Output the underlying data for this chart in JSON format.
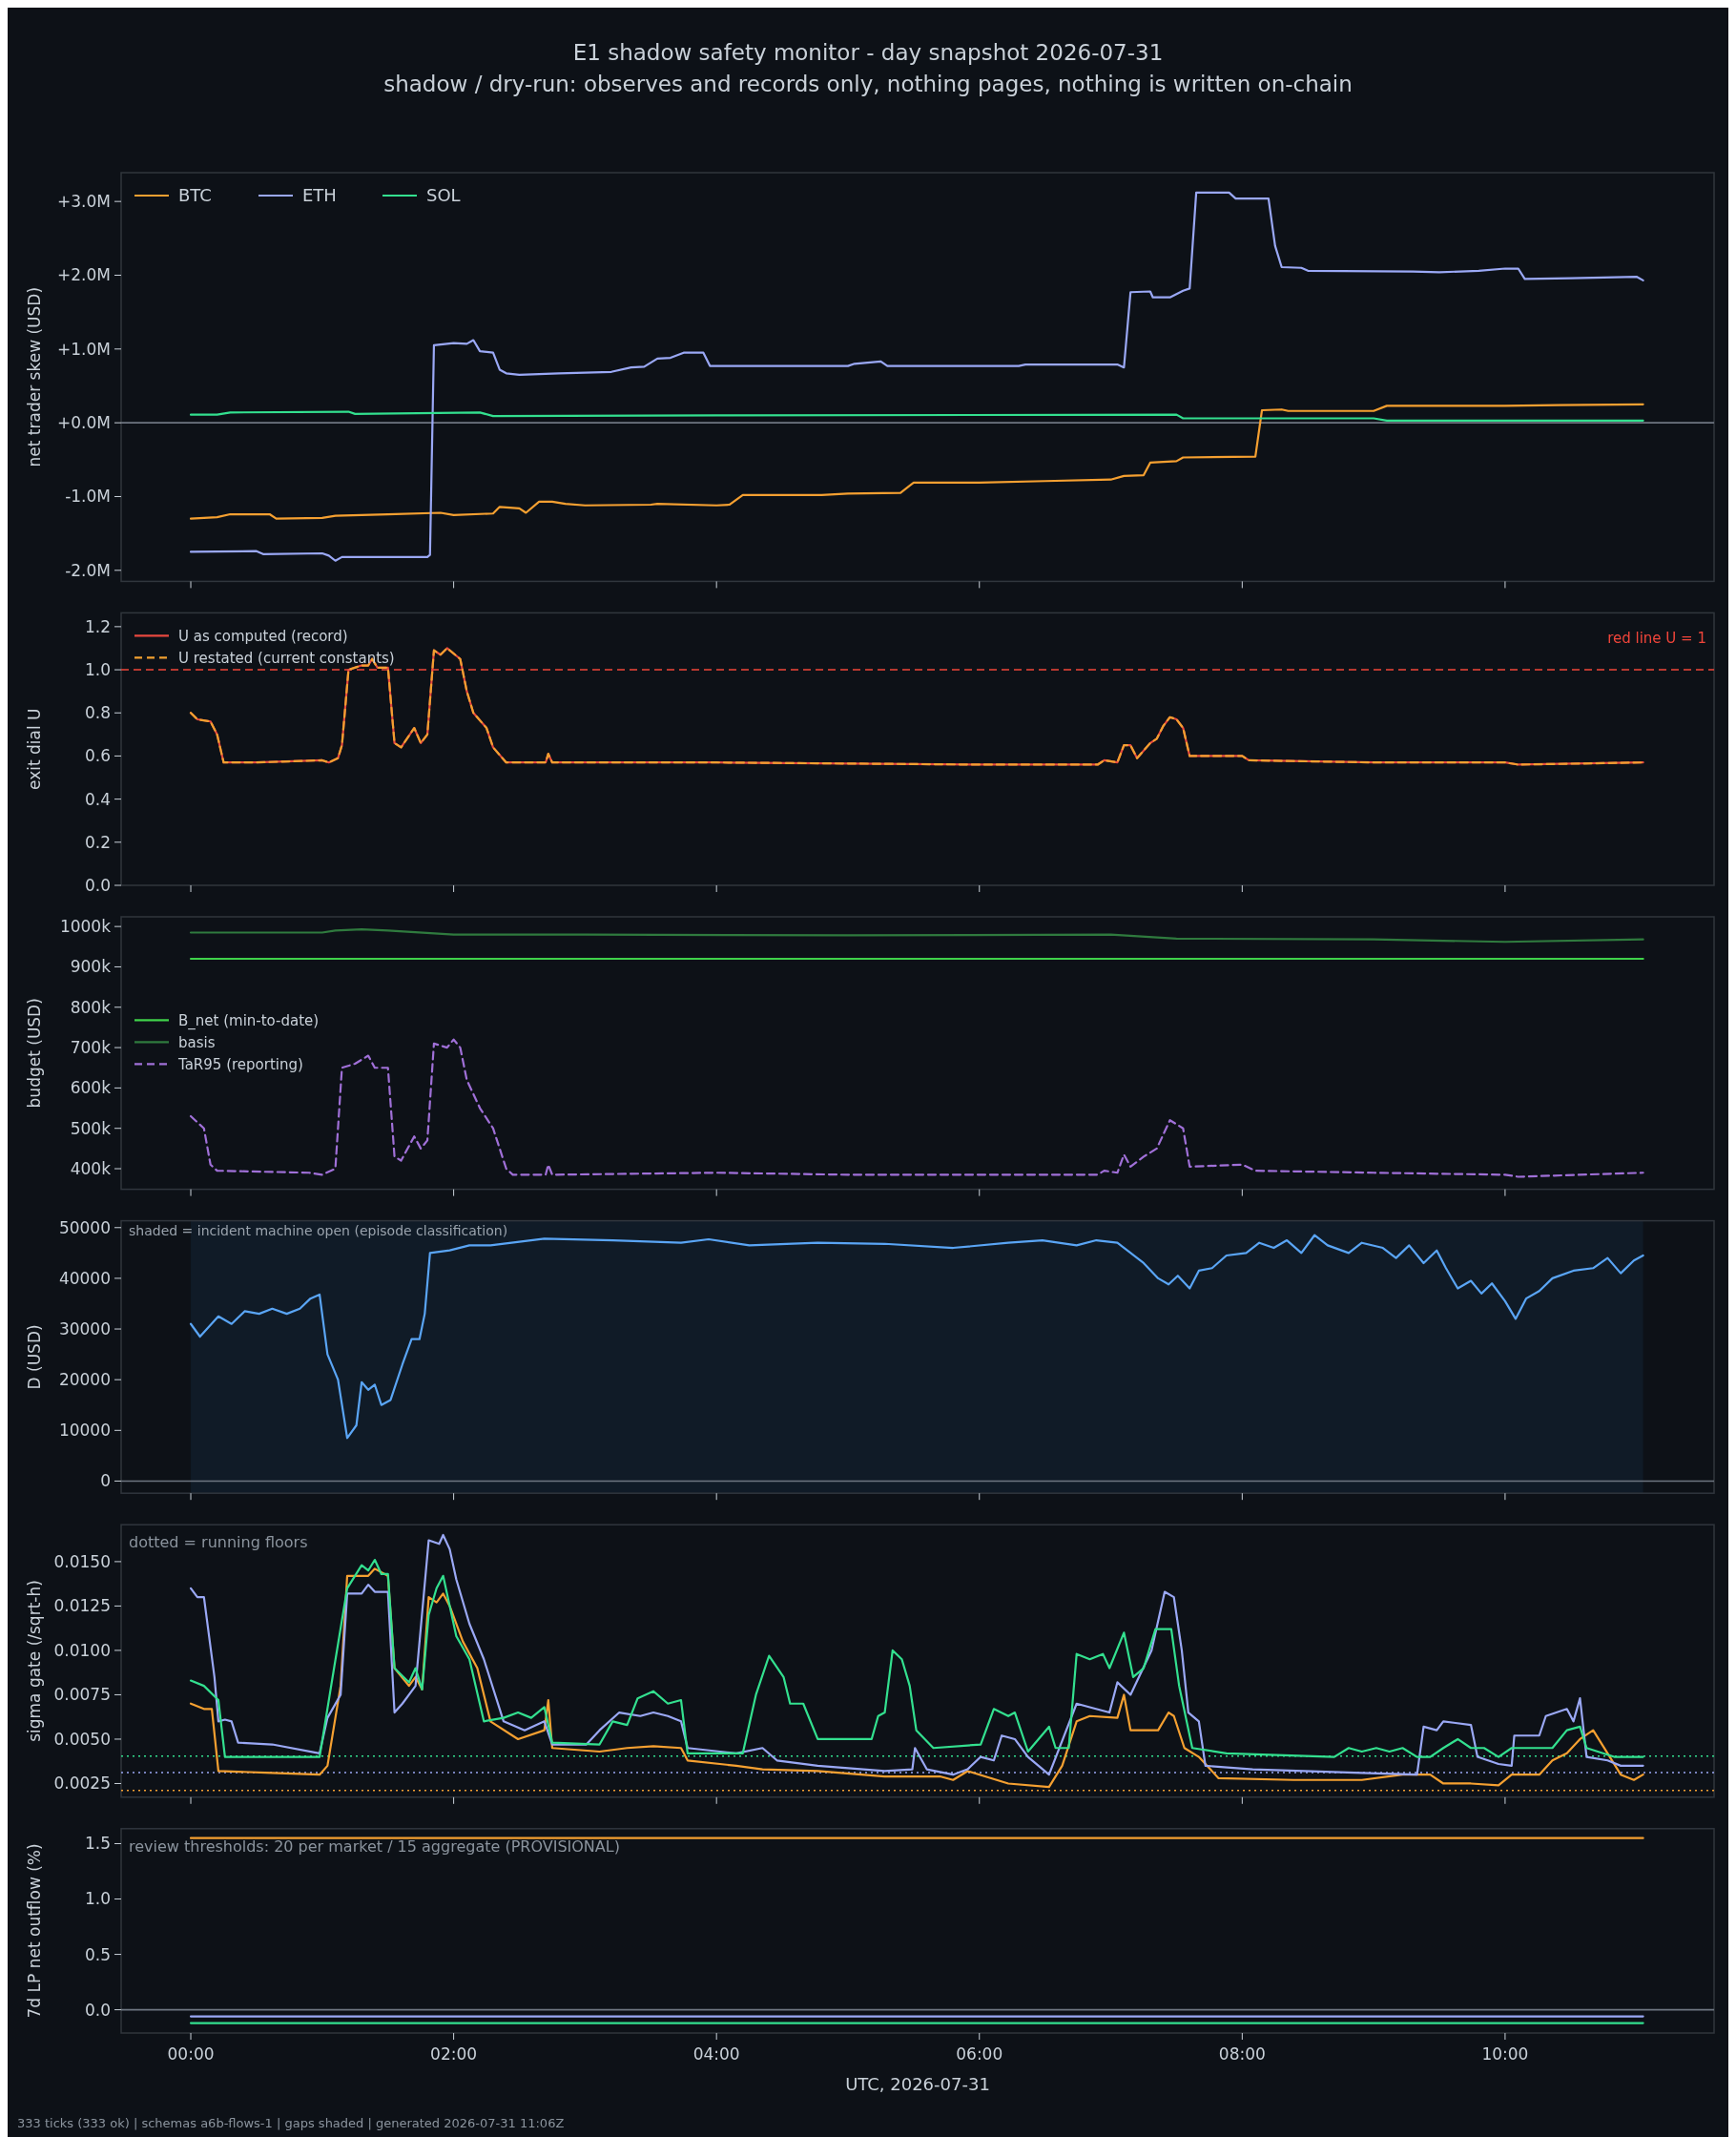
{
  "chart_data": [
    {
      "type": "line",
      "title": "E1 shadow safety monitor - day snapshot 2026-07-31",
      "subtitle": "shadow / dry-run: observes and records only, nothing pages, nothing is written on-chain",
      "ylabel": "net trader skew (USD)",
      "xlim": [
        -0.53,
        11.59
      ],
      "ylim": [
        -2.15,
        3.39
      ],
      "xticks": [
        {
          "value": 0,
          "label": null
        },
        {
          "value": 2,
          "label": null
        },
        {
          "value": 4,
          "label": null
        },
        {
          "value": 6,
          "label": null
        },
        {
          "value": 8,
          "label": null
        },
        {
          "value": 10,
          "label": null
        }
      ],
      "yticks": [
        {
          "value": -2,
          "label": "-2.0M"
        },
        {
          "value": -1,
          "label": "-1.0M"
        },
        {
          "value": 0,
          "label": "+0.0M"
        },
        {
          "value": 1,
          "label": "+1.0M"
        },
        {
          "value": 2,
          "label": "+2.0M"
        },
        {
          "value": 3,
          "label": "+3.0M"
        }
      ],
      "tick_labels": "y",
      "legend": "top left",
      "ref_lines": [
        {
          "axis": "y",
          "value": 0,
          "color": "#6e7681"
        }
      ],
      "series": [
        {
          "name": "BTC",
          "color": "#f5a031",
          "x": [
            0,
            0.2,
            0.3,
            0.6,
            0.65,
            1.0,
            1.1,
            1.5,
            1.9,
            2.0,
            2.3,
            2.35,
            2.5,
            2.55,
            2.65,
            2.75,
            2.85,
            3.0,
            3.5,
            3.55,
            4.0,
            4.1,
            4.2,
            4.8,
            5.0,
            5.4,
            5.5,
            6.0,
            6.5,
            7.0,
            7.1,
            7.25,
            7.3,
            7.5,
            7.55,
            8.1,
            8.15,
            8.3,
            8.35,
            9.0,
            9.1,
            10.0,
            10.4,
            11.05
          ],
          "values": [
            -1.3,
            -1.28,
            -1.24,
            -1.24,
            -1.3,
            -1.29,
            -1.26,
            -1.24,
            -1.22,
            -1.25,
            -1.23,
            -1.14,
            -1.16,
            -1.22,
            -1.07,
            -1.07,
            -1.1,
            -1.12,
            -1.11,
            -1.1,
            -1.12,
            -1.11,
            -0.98,
            -0.98,
            -0.96,
            -0.95,
            -0.81,
            -0.81,
            -0.79,
            -0.77,
            -0.72,
            -0.71,
            -0.54,
            -0.52,
            -0.47,
            -0.46,
            0.17,
            0.18,
            0.16,
            0.16,
            0.23,
            0.23,
            0.24,
            0.25
          ]
        },
        {
          "name": "ETH",
          "color": "#9aa8f5",
          "x": [
            0,
            0.5,
            0.55,
            1.0,
            1.05,
            1.1,
            1.15,
            1.8,
            1.82,
            1.85,
            2.0,
            2.1,
            2.15,
            2.2,
            2.3,
            2.35,
            2.4,
            2.5,
            2.8,
            3.2,
            3.35,
            3.45,
            3.55,
            3.65,
            3.75,
            3.9,
            3.95,
            5.0,
            5.05,
            5.25,
            5.3,
            6.3,
            6.35,
            7.05,
            7.1,
            7.15,
            7.3,
            7.32,
            7.45,
            7.55,
            7.6,
            7.65,
            7.9,
            7.95,
            8.2,
            8.25,
            8.3,
            8.45,
            8.5,
            9.3,
            9.5,
            9.8,
            10.0,
            10.1,
            10.15,
            10.5,
            11.0,
            11.05
          ],
          "values": [
            -1.75,
            -1.74,
            -1.78,
            -1.77,
            -1.8,
            -1.87,
            -1.82,
            -1.82,
            -1.79,
            1.05,
            1.08,
            1.07,
            1.12,
            0.97,
            0.95,
            0.72,
            0.67,
            0.65,
            0.67,
            0.69,
            0.75,
            0.76,
            0.87,
            0.88,
            0.95,
            0.95,
            0.77,
            0.77,
            0.8,
            0.83,
            0.77,
            0.77,
            0.79,
            0.79,
            0.75,
            1.77,
            1.78,
            1.7,
            1.7,
            1.79,
            1.82,
            3.12,
            3.12,
            3.04,
            3.04,
            2.4,
            2.11,
            2.1,
            2.06,
            2.05,
            2.04,
            2.06,
            2.09,
            2.09,
            1.95,
            1.96,
            1.98,
            1.93
          ]
        },
        {
          "name": "SOL",
          "color": "#33e08f",
          "x": [
            0,
            0.2,
            0.3,
            1.2,
            1.25,
            2.2,
            2.3,
            4.0,
            7.5,
            7.55,
            9.0,
            9.1,
            11.05
          ],
          "values": [
            0.11,
            0.11,
            0.14,
            0.15,
            0.12,
            0.14,
            0.09,
            0.1,
            0.11,
            0.06,
            0.06,
            0.03,
            0.03
          ]
        }
      ]
    },
    {
      "type": "line",
      "ylabel": "exit dial U",
      "xlim": [
        -0.53,
        11.59
      ],
      "ylim": [
        0,
        1.264
      ],
      "xticks": [
        {
          "value": 0,
          "label": null
        },
        {
          "value": 2,
          "label": null
        },
        {
          "value": 4,
          "label": null
        },
        {
          "value": 6,
          "label": null
        },
        {
          "value": 8,
          "label": null
        },
        {
          "value": 10,
          "label": null
        }
      ],
      "yticks": [
        {
          "value": 0,
          "label": "0.0"
        },
        0.2,
        0.4,
        0.6,
        0.8,
        {
          "value": 1,
          "label": "1.0"
        },
        1.2
      ],
      "tick_labels": "y",
      "legend": "top left",
      "ref_lines": [
        {
          "axis": "y",
          "value": 1,
          "label": "red line U = 1",
          "color": "#f0453a",
          "line_style": "dashed"
        }
      ],
      "x": [
        0,
        0.05,
        0.15,
        0.2,
        0.25,
        0.5,
        1.0,
        1.05,
        1.12,
        1.15,
        1.2,
        1.3,
        1.35,
        1.38,
        1.42,
        1.5,
        1.55,
        1.6,
        1.7,
        1.75,
        1.8,
        1.85,
        1.9,
        1.95,
        2.05,
        2.1,
        2.15,
        2.25,
        2.3,
        2.4,
        2.7,
        2.72,
        2.75,
        4.0,
        6.0,
        6.9,
        6.95,
        7.05,
        7.1,
        7.15,
        7.2,
        7.3,
        7.35,
        7.4,
        7.45,
        7.5,
        7.55,
        7.6,
        8.0,
        8.05,
        9.0,
        10.0,
        10.1,
        11.05
      ],
      "series": [
        {
          "name": "U as computed (record)",
          "color": "#e8483f",
          "line_style": "solid",
          "values": [
            0.8,
            0.77,
            0.76,
            0.7,
            0.57,
            0.57,
            0.58,
            0.57,
            0.59,
            0.65,
            1.0,
            1.02,
            1.02,
            1.05,
            1.01,
            1.01,
            0.66,
            0.64,
            0.73,
            0.66,
            0.7,
            1.09,
            1.07,
            1.1,
            1.05,
            0.9,
            0.8,
            0.73,
            0.64,
            0.57,
            0.57,
            0.61,
            0.57,
            0.57,
            0.56,
            0.56,
            0.58,
            0.57,
            0.65,
            0.65,
            0.59,
            0.66,
            0.68,
            0.74,
            0.78,
            0.77,
            0.73,
            0.6,
            0.6,
            0.58,
            0.57,
            0.57,
            0.56,
            0.57
          ]
        },
        {
          "name": "U restated (current constants)",
          "color": "#f0a030",
          "line_style": "dashed",
          "values": [
            0.8,
            0.77,
            0.76,
            0.7,
            0.57,
            0.57,
            0.58,
            0.57,
            0.59,
            0.65,
            1.0,
            1.02,
            1.02,
            1.05,
            1.01,
            1.01,
            0.66,
            0.64,
            0.73,
            0.66,
            0.7,
            1.09,
            1.07,
            1.1,
            1.05,
            0.9,
            0.8,
            0.73,
            0.64,
            0.57,
            0.57,
            0.61,
            0.57,
            0.57,
            0.56,
            0.56,
            0.58,
            0.57,
            0.65,
            0.65,
            0.59,
            0.66,
            0.68,
            0.74,
            0.78,
            0.77,
            0.73,
            0.6,
            0.6,
            0.58,
            0.57,
            0.57,
            0.56,
            0.57
          ]
        }
      ]
    },
    {
      "type": "line",
      "ylabel": "budget (USD)",
      "xlim": [
        -0.53,
        11.59
      ],
      "ylim": [
        349,
        1024
      ],
      "xticks": [
        {
          "value": 0,
          "label": null
        },
        {
          "value": 2,
          "label": null
        },
        {
          "value": 4,
          "label": null
        },
        {
          "value": 6,
          "label": null
        },
        {
          "value": 8,
          "label": null
        },
        {
          "value": 10,
          "label": null
        }
      ],
      "yticks": [
        {
          "value": 400,
          "label": "400k"
        },
        {
          "value": 500,
          "label": "500k"
        },
        {
          "value": 600,
          "label": "600k"
        },
        {
          "value": 700,
          "label": "700k"
        },
        {
          "value": 800,
          "label": "800k"
        },
        {
          "value": 900,
          "label": "900k"
        },
        {
          "value": 1000,
          "label": "1000k"
        }
      ],
      "tick_labels": "y",
      "legend": "left",
      "series": [
        {
          "name": "B_net (min-to-date)",
          "color": "#3fd24a",
          "x": [
            0,
            11.05
          ],
          "values": [
            920,
            920
          ]
        },
        {
          "name": "basis",
          "color": "#2f7a3e",
          "x": [
            0,
            1.0,
            1.1,
            1.3,
            1.5,
            2.0,
            3.0,
            5.0,
            7.0,
            7.5,
            9.0,
            10.0,
            11.05
          ],
          "values": [
            985,
            985,
            990,
            993,
            990,
            980,
            980,
            978,
            980,
            970,
            968,
            962,
            968
          ]
        },
        {
          "name": "TaR95 (reporting)",
          "color": "#a070d8",
          "line_style": "dashed",
          "x": [
            0,
            0.1,
            0.15,
            0.2,
            0.9,
            1.0,
            1.1,
            1.15,
            1.25,
            1.35,
            1.4,
            1.5,
            1.55,
            1.6,
            1.7,
            1.75,
            1.8,
            1.85,
            1.95,
            2.0,
            2.05,
            2.1,
            2.2,
            2.3,
            2.4,
            2.45,
            2.7,
            2.72,
            2.75,
            4.0,
            5.0,
            6.9,
            6.95,
            7.05,
            7.1,
            7.15,
            7.25,
            7.35,
            7.45,
            7.55,
            7.6,
            8.0,
            8.1,
            9.0,
            10.0,
            10.1,
            11.05
          ],
          "values": [
            530,
            500,
            410,
            395,
            390,
            385,
            400,
            650,
            660,
            680,
            650,
            650,
            430,
            420,
            480,
            450,
            470,
            710,
            700,
            720,
            700,
            620,
            550,
            500,
            400,
            385,
            385,
            410,
            385,
            390,
            385,
            385,
            395,
            390,
            435,
            405,
            430,
            450,
            520,
            500,
            405,
            410,
            395,
            390,
            385,
            380,
            390
          ]
        }
      ]
    },
    {
      "type": "line",
      "ylabel": "D (USD)",
      "xlim": [
        -0.53,
        11.59
      ],
      "ylim": [
        -2400,
        51350
      ],
      "xticks": [
        {
          "value": 0,
          "label": null
        },
        {
          "value": 2,
          "label": null
        },
        {
          "value": 4,
          "label": null
        },
        {
          "value": 6,
          "label": null
        },
        {
          "value": 8,
          "label": null
        },
        {
          "value": 10,
          "label": null
        }
      ],
      "yticks": [
        0,
        10000,
        20000,
        30000,
        40000,
        50000
      ],
      "tick_labels": "y",
      "ref_lines": [
        {
          "axis": "y",
          "value": 0,
          "color": "#6e7681"
        }
      ],
      "bands": [
        {
          "axis": "x",
          "from": 0,
          "to": 11.05,
          "label": "shaded = incident machine open (episode classification)",
          "color": "#101b27"
        }
      ],
      "series": [
        {
          "color": "#5aa5f5",
          "x": [
            0,
            0.07,
            0.21,
            0.31,
            0.41,
            0.52,
            0.62,
            0.73,
            0.83,
            0.91,
            0.98,
            1.04,
            1.12,
            1.19,
            1.26,
            1.3,
            1.35,
            1.4,
            1.45,
            1.52,
            1.61,
            1.68,
            1.74,
            1.78,
            1.82,
            1.97,
            2.12,
            2.28,
            2.69,
            3.21,
            3.73,
            3.94,
            4.25,
            4.77,
            5.28,
            5.8,
            6.22,
            6.48,
            6.74,
            6.89,
            7.05,
            7.25,
            7.36,
            7.44,
            7.51,
            7.6,
            7.67,
            7.77,
            7.88,
            8.03,
            8.13,
            8.24,
            8.34,
            8.45,
            8.55,
            8.65,
            8.81,
            8.91,
            9.07,
            9.17,
            9.27,
            9.38,
            9.48,
            9.55,
            9.64,
            9.74,
            9.82,
            9.9,
            10.0,
            10.08,
            10.16,
            10.26,
            10.36,
            10.52,
            10.67,
            10.78,
            10.88,
            10.98,
            11.05
          ],
          "values": [
            31000,
            28500,
            32500,
            31000,
            33500,
            33000,
            34000,
            33000,
            34000,
            36000,
            36800,
            25000,
            20000,
            8500,
            11000,
            19500,
            18000,
            19000,
            15000,
            16000,
            23000,
            28000,
            28000,
            33000,
            45000,
            45500,
            46500,
            46500,
            47800,
            47500,
            47000,
            47700,
            46500,
            47000,
            46800,
            46000,
            47000,
            47500,
            46500,
            47500,
            47000,
            43000,
            40000,
            38800,
            40500,
            38000,
            41500,
            42000,
            44500,
            45000,
            47000,
            46000,
            47500,
            45000,
            48500,
            46500,
            45000,
            47000,
            46000,
            44000,
            46500,
            43000,
            45500,
            42000,
            38000,
            39500,
            37000,
            39000,
            35500,
            32000,
            36000,
            37500,
            40000,
            41500,
            42000,
            44000,
            41000,
            43500,
            44500
          ]
        }
      ]
    },
    {
      "type": "line",
      "ylabel": "sigma gate (/sqrt-h)",
      "xlim": [
        -0.53,
        11.59
      ],
      "ylim": [
        0.00173,
        0.01708
      ],
      "xticks": [
        {
          "value": 0,
          "label": null
        },
        {
          "value": 2,
          "label": null
        },
        {
          "value": 4,
          "label": null
        },
        {
          "value": 6,
          "label": null
        },
        {
          "value": 8,
          "label": null
        },
        {
          "value": 10,
          "label": null
        }
      ],
      "yticks": [
        0.0025,
        {
          "value": 0.005,
          "label": "0.0050"
        },
        0.0075,
        {
          "value": 0.01,
          "label": "0.0100"
        },
        0.0125,
        {
          "value": 0.015,
          "label": "0.0150"
        }
      ],
      "tick_labels": "y",
      "annotations": [
        "dotted = running floors"
      ],
      "ref_lines": [
        {
          "axis": "y",
          "value": 0.00404,
          "color": "#33e08f",
          "line_style": "dotted"
        },
        {
          "axis": "y",
          "value": 0.00312,
          "color": "#9aa8f5",
          "line_style": "dotted"
        },
        {
          "axis": "y",
          "value": 0.00211,
          "color": "#f5a031",
          "line_style": "dotted"
        }
      ],
      "series": [
        {
          "color": "#f5a031",
          "x": [
            0,
            0.1,
            0.16,
            0.21,
            0.62,
            0.98,
            1.04,
            1.14,
            1.19,
            1.35,
            1.4,
            1.5,
            1.55,
            1.66,
            1.71,
            1.76,
            1.81,
            1.87,
            1.92,
            1.97,
            2.07,
            2.18,
            2.28,
            2.49,
            2.69,
            2.72,
            2.75,
            3.11,
            3.32,
            3.52,
            3.73,
            3.78,
            4.15,
            4.35,
            4.77,
            5.28,
            5.7,
            5.8,
            5.91,
            6.22,
            6.53,
            6.63,
            6.74,
            6.84,
            7.05,
            7.1,
            7.15,
            7.36,
            7.44,
            7.48,
            7.56,
            7.67,
            7.82,
            8.39,
            8.91,
            9.22,
            9.43,
            9.53,
            9.74,
            9.95,
            10.05,
            10.26,
            10.36,
            10.47,
            10.57,
            10.67,
            10.78,
            10.88,
            10.98,
            11.05
          ],
          "values": [
            0.007,
            0.0067,
            0.0067,
            0.0032,
            0.0031,
            0.003,
            0.0035,
            0.008,
            0.0142,
            0.0142,
            0.0146,
            0.0142,
            0.009,
            0.008,
            0.0085,
            0.0078,
            0.013,
            0.0127,
            0.0132,
            0.0125,
            0.0105,
            0.009,
            0.006,
            0.005,
            0.0055,
            0.0072,
            0.0045,
            0.0043,
            0.0045,
            0.0046,
            0.0045,
            0.0038,
            0.0035,
            0.0033,
            0.0032,
            0.0029,
            0.0029,
            0.0027,
            0.0032,
            0.0025,
            0.0023,
            0.0035,
            0.006,
            0.0063,
            0.0062,
            0.0075,
            0.0055,
            0.0055,
            0.0065,
            0.0063,
            0.0045,
            0.004,
            0.0028,
            0.0027,
            0.0027,
            0.003,
            0.003,
            0.0025,
            0.0025,
            0.0024,
            0.003,
            0.003,
            0.0038,
            0.0042,
            0.005,
            0.0055,
            0.0042,
            0.003,
            0.0027,
            0.003
          ]
        },
        {
          "color": "#9aa8f5",
          "x": [
            0,
            0.05,
            0.1,
            0.18,
            0.21,
            0.26,
            0.31,
            0.36,
            0.62,
            0.98,
            1.04,
            1.14,
            1.19,
            1.3,
            1.35,
            1.4,
            1.5,
            1.55,
            1.61,
            1.71,
            1.81,
            1.89,
            1.92,
            1.97,
            2.02,
            2.12,
            2.23,
            2.38,
            2.54,
            2.69,
            2.75,
            3.01,
            3.11,
            3.26,
            3.42,
            3.52,
            3.63,
            3.73,
            3.78,
            4.15,
            4.35,
            4.46,
            4.77,
            5.28,
            5.49,
            5.51,
            5.6,
            5.8,
            5.91,
            6.01,
            6.11,
            6.17,
            6.27,
            6.37,
            6.53,
            6.74,
            6.84,
            6.99,
            7.05,
            7.15,
            7.31,
            7.41,
            7.48,
            7.54,
            7.59,
            7.67,
            7.72,
            8.08,
            8.91,
            9.33,
            9.38,
            9.48,
            9.53,
            9.74,
            9.79,
            9.95,
            10.05,
            10.07,
            10.26,
            10.31,
            10.47,
            10.52,
            10.57,
            10.62,
            10.78,
            10.88,
            11.05
          ],
          "values": [
            0.0135,
            0.013,
            0.013,
            0.0085,
            0.006,
            0.0061,
            0.006,
            0.0048,
            0.0047,
            0.0042,
            0.0062,
            0.0075,
            0.0132,
            0.0132,
            0.0137,
            0.0133,
            0.0133,
            0.0065,
            0.007,
            0.008,
            0.0162,
            0.016,
            0.0165,
            0.0157,
            0.014,
            0.0115,
            0.0095,
            0.006,
            0.0055,
            0.006,
            0.0047,
            0.0047,
            0.0055,
            0.0065,
            0.0063,
            0.0065,
            0.0063,
            0.006,
            0.0045,
            0.0042,
            0.0045,
            0.0038,
            0.0035,
            0.0032,
            0.0033,
            0.0045,
            0.0033,
            0.003,
            0.0033,
            0.004,
            0.0038,
            0.0052,
            0.005,
            0.004,
            0.003,
            0.007,
            0.0068,
            0.0065,
            0.0082,
            0.0075,
            0.01,
            0.0133,
            0.013,
            0.01,
            0.0065,
            0.006,
            0.0035,
            0.0033,
            0.0031,
            0.003,
            0.0057,
            0.0055,
            0.006,
            0.0058,
            0.004,
            0.0036,
            0.0035,
            0.0052,
            0.0052,
            0.0063,
            0.0067,
            0.006,
            0.0073,
            0.004,
            0.0038,
            0.0035,
            0.0035
          ]
        },
        {
          "color": "#33e08f",
          "x": [
            0,
            0.1,
            0.21,
            0.26,
            0.62,
            0.98,
            1.09,
            1.19,
            1.3,
            1.35,
            1.4,
            1.45,
            1.5,
            1.55,
            1.66,
            1.71,
            1.76,
            1.81,
            1.87,
            1.92,
            2.02,
            2.12,
            2.23,
            2.38,
            2.49,
            2.59,
            2.69,
            2.75,
            3.11,
            3.21,
            3.32,
            3.4,
            3.52,
            3.63,
            3.73,
            3.78,
            4.2,
            4.3,
            4.4,
            4.51,
            4.56,
            4.66,
            4.77,
            5.18,
            5.23,
            5.28,
            5.34,
            5.41,
            5.47,
            5.52,
            5.65,
            6.01,
            6.11,
            6.22,
            6.27,
            6.37,
            6.53,
            6.58,
            6.68,
            6.74,
            6.84,
            6.94,
            6.99,
            7.1,
            7.17,
            7.25,
            7.34,
            7.46,
            7.52,
            7.62,
            7.88,
            8.7,
            8.81,
            8.91,
            9.02,
            9.12,
            9.22,
            9.33,
            9.43,
            9.53,
            9.64,
            9.74,
            9.84,
            9.95,
            10.05,
            10.36,
            10.47,
            10.57,
            10.62,
            10.83,
            11.05
          ],
          "values": [
            0.0083,
            0.008,
            0.0072,
            0.004,
            0.004,
            0.004,
            0.009,
            0.0135,
            0.0148,
            0.0145,
            0.0151,
            0.0143,
            0.0143,
            0.009,
            0.0082,
            0.009,
            0.0078,
            0.012,
            0.0135,
            0.0142,
            0.0108,
            0.0095,
            0.006,
            0.0062,
            0.0065,
            0.0062,
            0.0068,
            0.0048,
            0.0047,
            0.006,
            0.0058,
            0.0073,
            0.0077,
            0.007,
            0.0072,
            0.0042,
            0.0042,
            0.0075,
            0.0097,
            0.0085,
            0.007,
            0.007,
            0.005,
            0.005,
            0.0063,
            0.0065,
            0.01,
            0.0095,
            0.008,
            0.0055,
            0.0045,
            0.0047,
            0.0067,
            0.0063,
            0.0065,
            0.0043,
            0.0057,
            0.0045,
            0.0045,
            0.0098,
            0.0095,
            0.0098,
            0.009,
            0.011,
            0.0085,
            0.009,
            0.0112,
            0.0112,
            0.008,
            0.0045,
            0.0042,
            0.004,
            0.0045,
            0.0043,
            0.0045,
            0.0043,
            0.0045,
            0.004,
            0.004,
            0.0045,
            0.005,
            0.0045,
            0.0045,
            0.004,
            0.0045,
            0.0045,
            0.0055,
            0.0057,
            0.0045,
            0.004,
            0.004
          ]
        }
      ]
    },
    {
      "type": "line",
      "ylabel": "7d LP net outflow (%)",
      "xlabel": "UTC, 2026-07-31",
      "xlim": [
        -0.53,
        11.59
      ],
      "ylim": [
        -0.21,
        1.635
      ],
      "xticks": [
        {
          "value": 0,
          "label": "00:00"
        },
        {
          "value": 2,
          "label": "02:00"
        },
        {
          "value": 4,
          "label": "04:00"
        },
        {
          "value": 6,
          "label": "06:00"
        },
        {
          "value": 8,
          "label": "08:00"
        },
        {
          "value": 10,
          "label": "10:00"
        }
      ],
      "yticks": [
        {
          "value": 0,
          "label": "0.0"
        },
        0.5,
        {
          "value": 1,
          "label": "1.0"
        },
        1.5
      ],
      "annotations": [
        "review thresholds: 20 per market / 15 aggregate (PROVISIONAL)",
        "333 ticks (333 ok) | schemas a6b-flows-1 | gaps shaded | generated 2026-07-31 11:06Z"
      ],
      "ref_lines": [
        {
          "axis": "y",
          "value": 0,
          "color": "#6e7681"
        }
      ],
      "series": [
        {
          "color": "#f5a031",
          "x": [
            0,
            11.05
          ],
          "values": [
            1.55,
            1.55
          ]
        },
        {
          "color": "#9aa8f5",
          "x": [
            0,
            11.05
          ],
          "values": [
            -0.06,
            -0.06
          ]
        },
        {
          "color": "#33e08f",
          "x": [
            0,
            11.05
          ],
          "values": [
            -0.12,
            -0.12
          ]
        }
      ]
    }
  ]
}
